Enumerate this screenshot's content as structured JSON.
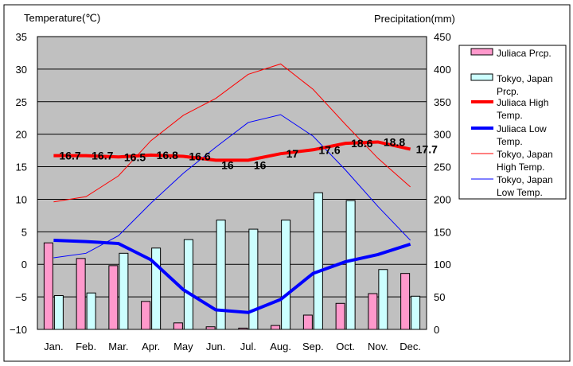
{
  "chart_data": {
    "type": "bar+line",
    "ylabel_left": "Temperature(℃)",
    "ylabel_right": "Precipitation(mm)",
    "ylim_left": [
      -10,
      35
    ],
    "yticks_left": [
      35,
      30,
      25,
      20,
      15,
      10,
      5,
      0,
      -5,
      -10
    ],
    "ylim_right": [
      0,
      450
    ],
    "yticks_right": [
      450,
      400,
      350,
      300,
      250,
      200,
      150,
      100,
      50,
      0
    ],
    "grid": true,
    "legend_position": "right",
    "categories": [
      "Jan.",
      "Feb.",
      "Mar.",
      "Apr.",
      "May",
      "Jun.",
      "Jul.",
      "Aug.",
      "Sep.",
      "Oct.",
      "Nov.",
      "Dec."
    ],
    "bars": [
      {
        "name": "Juliaca Prcp.",
        "color": "#ff99cc",
        "values": [
          133,
          109,
          98,
          43,
          10,
          4,
          2,
          6,
          22,
          40,
          55,
          86
        ]
      },
      {
        "name": "Tokyo, Japan Prcp.",
        "color": "#ccffff",
        "values": [
          52,
          56,
          117,
          125,
          138,
          168,
          154,
          168,
          210,
          198,
          92,
          51
        ]
      }
    ],
    "lines": [
      {
        "name": "Juliaca High Temp.",
        "color": "#ff0000",
        "width": 4,
        "labels": true,
        "values": [
          16.7,
          16.7,
          16.5,
          16.8,
          16.6,
          16,
          16,
          17,
          17.6,
          18.6,
          18.8,
          17.7
        ]
      },
      {
        "name": "Juliaca Low Temp.",
        "color": "#0000ff",
        "width": 4,
        "labels": false,
        "values": [
          3.7,
          3.5,
          3.2,
          0.7,
          -3.9,
          -7.0,
          -7.4,
          -5.4,
          -1.4,
          0.4,
          1.5,
          3.1
        ]
      },
      {
        "name": "Tokyo, Japan High Temp.",
        "color": "#ff0000",
        "width": 1,
        "labels": false,
        "values": [
          9.6,
          10.4,
          13.6,
          19.0,
          22.9,
          25.5,
          29.2,
          30.8,
          26.9,
          21.5,
          16.3,
          11.9
        ]
      },
      {
        "name": "Tokyo, Japan Low Temp.",
        "color": "#0000ff",
        "width": 1,
        "labels": false,
        "values": [
          1.0,
          1.7,
          4.4,
          9.4,
          14.0,
          18.0,
          21.8,
          23.0,
          19.7,
          14.5,
          8.9,
          3.7
        ]
      }
    ],
    "legend": [
      {
        "label1": "Juliaca Prcp.",
        "label2": ""
      },
      {
        "label1": "Tokyo, Japan",
        "label2": "Prcp."
      },
      {
        "label1": "Juliaca High",
        "label2": "Temp."
      },
      {
        "label1": "Juliaca Low",
        "label2": "Temp."
      },
      {
        "label1": "Tokyo, Japan",
        "label2": "High Temp."
      },
      {
        "label1": "Tokyo, Japan",
        "label2": "Low Temp."
      }
    ]
  }
}
